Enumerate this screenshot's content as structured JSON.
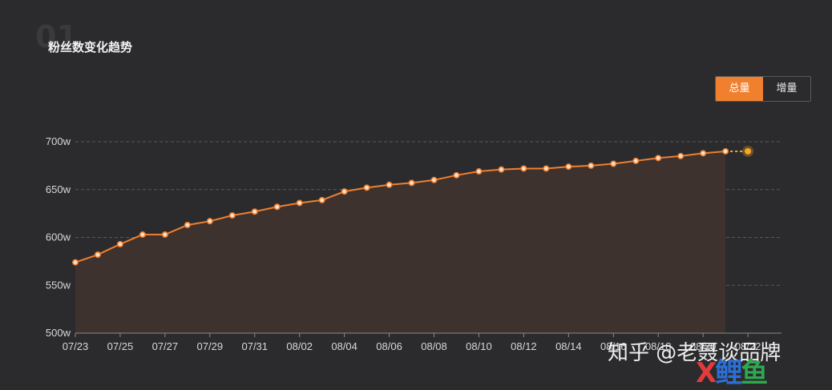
{
  "section": {
    "number": "01",
    "title": "粉丝数变化趋势"
  },
  "toggle": {
    "options": [
      "总量",
      "增量"
    ],
    "selected": "总量"
  },
  "colors": {
    "line": "#f07f2e",
    "area": "#3d322e",
    "forecast": "#f5a623",
    "grid": "#5a5a5e"
  },
  "chart_data": {
    "type": "line",
    "title": "粉丝数变化趋势",
    "xlabel": "",
    "ylabel": "",
    "ylim": [
      500,
      700
    ],
    "y_ticks": [
      "700w",
      "650w",
      "600w",
      "550w",
      "500w"
    ],
    "y_tick_values": [
      700,
      650,
      600,
      550,
      500
    ],
    "x_tick_labels": [
      "07/23",
      "07/25",
      "07/27",
      "07/29",
      "07/31",
      "08/02",
      "08/04",
      "08/06",
      "08/08",
      "08/10",
      "08/12",
      "08/14",
      "08/16",
      "08/18",
      "08/20",
      "08/22"
    ],
    "x": [
      "07/23",
      "07/24",
      "07/25",
      "07/26",
      "07/27",
      "07/28",
      "07/29",
      "07/30",
      "07/31",
      "08/01",
      "08/02",
      "08/03",
      "08/04",
      "08/05",
      "08/06",
      "08/07",
      "08/08",
      "08/09",
      "08/10",
      "08/11",
      "08/12",
      "08/13",
      "08/14",
      "08/15",
      "08/16",
      "08/17",
      "08/18",
      "08/19",
      "08/20",
      "08/21"
    ],
    "series": [
      {
        "values": [
          574,
          582,
          593,
          603,
          603,
          613,
          617,
          623,
          627,
          632,
          636,
          639,
          648,
          652,
          655,
          657,
          660,
          665,
          669,
          671,
          672,
          672,
          674,
          675,
          677,
          680,
          683,
          685,
          688,
          690
        ]
      }
    ],
    "forecast": {
      "x": "08/22",
      "value": 690
    },
    "grid": true,
    "area_fill": true
  },
  "watermark": {
    "text": "知乎 @老聂谈品牌",
    "logo": [
      "X",
      "鲤",
      "鱼"
    ]
  }
}
